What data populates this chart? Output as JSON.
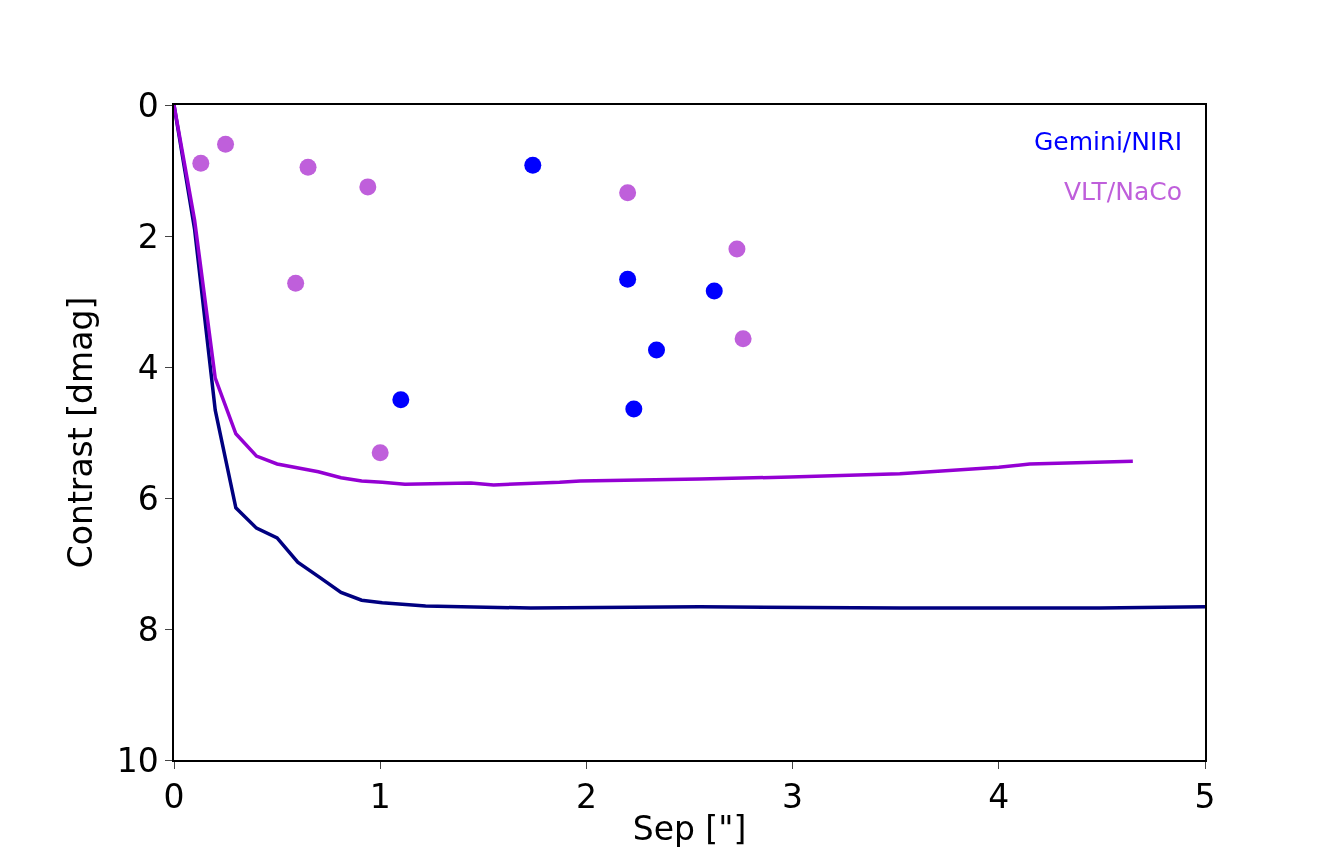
{
  "chart_data": {
    "type": "scatter",
    "xlabel": "Sep [\"]",
    "ylabel": "Contrast [dmag]",
    "xlim": [
      0,
      5
    ],
    "xticks": [
      0,
      1,
      2,
      3,
      4,
      5
    ],
    "ylim": [
      10,
      0
    ],
    "yticks": [
      0,
      2,
      4,
      6,
      8,
      10
    ],
    "grid": false,
    "legend": "top right",
    "marker": "circle",
    "series": [
      {
        "name": "Gemini/NIRI",
        "color": "#0000ff",
        "x": [
          1.74,
          2.2,
          2.62,
          2.34,
          1.1,
          2.23
        ],
        "values": [
          0.92,
          2.66,
          2.84,
          3.74,
          4.5,
          4.64
        ]
      },
      {
        "name": "VLT/NaCo",
        "color": "#bf5fdb",
        "x": [
          0.13,
          0.25,
          0.65,
          0.94,
          0.59,
          1.0,
          2.2,
          2.73,
          2.76
        ],
        "values": [
          0.89,
          0.6,
          0.95,
          1.25,
          2.72,
          5.31,
          1.34,
          2.2,
          3.57
        ]
      },
      {
        "type": "line",
        "marker": "none",
        "color": "#000080",
        "x": [
          0,
          0.1,
          0.2,
          0.3,
          0.4,
          0.5,
          0.6,
          0.71,
          0.81,
          0.91,
          1.01,
          1.22,
          1.73,
          2.55,
          3.52,
          4.49,
          5
        ],
        "values": [
          0,
          1.9,
          4.66,
          6.15,
          6.46,
          6.61,
          6.98,
          7.22,
          7.44,
          7.56,
          7.6,
          7.65,
          7.68,
          7.66,
          7.68,
          7.68,
          7.66
        ]
      },
      {
        "type": "line",
        "marker": "none",
        "color": "#9400d3",
        "x": [
          0,
          0.1,
          0.2,
          0.3,
          0.4,
          0.5,
          0.7,
          0.81,
          0.91,
          1.01,
          1.12,
          1.44,
          1.55,
          1.87,
          1.97,
          2.55,
          2.99,
          3.52,
          4.0,
          4.15,
          4.65
        ],
        "values": [
          0,
          1.76,
          4.17,
          5.02,
          5.36,
          5.48,
          5.6,
          5.69,
          5.74,
          5.76,
          5.79,
          5.77,
          5.8,
          5.76,
          5.74,
          5.71,
          5.68,
          5.63,
          5.53,
          5.48,
          5.44
        ]
      }
    ]
  }
}
